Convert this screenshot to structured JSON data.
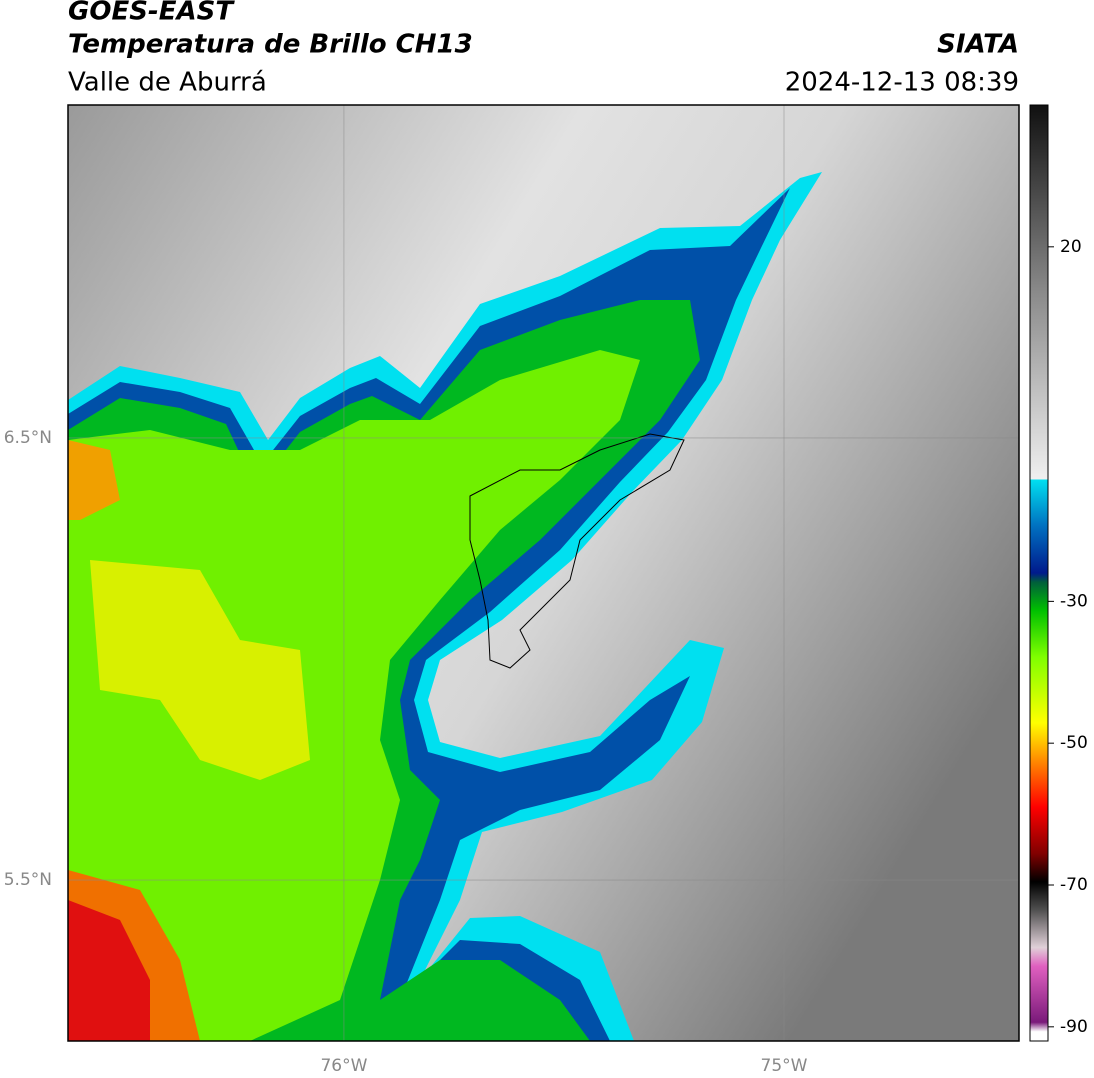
{
  "header": {
    "title": "GOES-EAST",
    "subtitle": "Temperatura de Brillo CH13",
    "region": "Valle de Aburrá",
    "source": "SIATA",
    "datetime": "2024-12-13 08:39"
  },
  "map": {
    "lonlim": [
      -76.627,
      -74.466
    ],
    "latlim": [
      5.136,
      7.253
    ],
    "lonticks": [
      {
        "value": -76,
        "label": "76°W"
      },
      {
        "value": -75,
        "label": "75°W"
      }
    ],
    "latticks": [
      {
        "value": 6.5,
        "label": "6.5°N"
      },
      {
        "value": 5.5,
        "label": "5.5°N"
      }
    ],
    "grid": true
  },
  "colorbar": {
    "range": [
      -92,
      40
    ],
    "ticks": [
      20,
      -30,
      -50,
      -70,
      -90
    ]
  }
}
